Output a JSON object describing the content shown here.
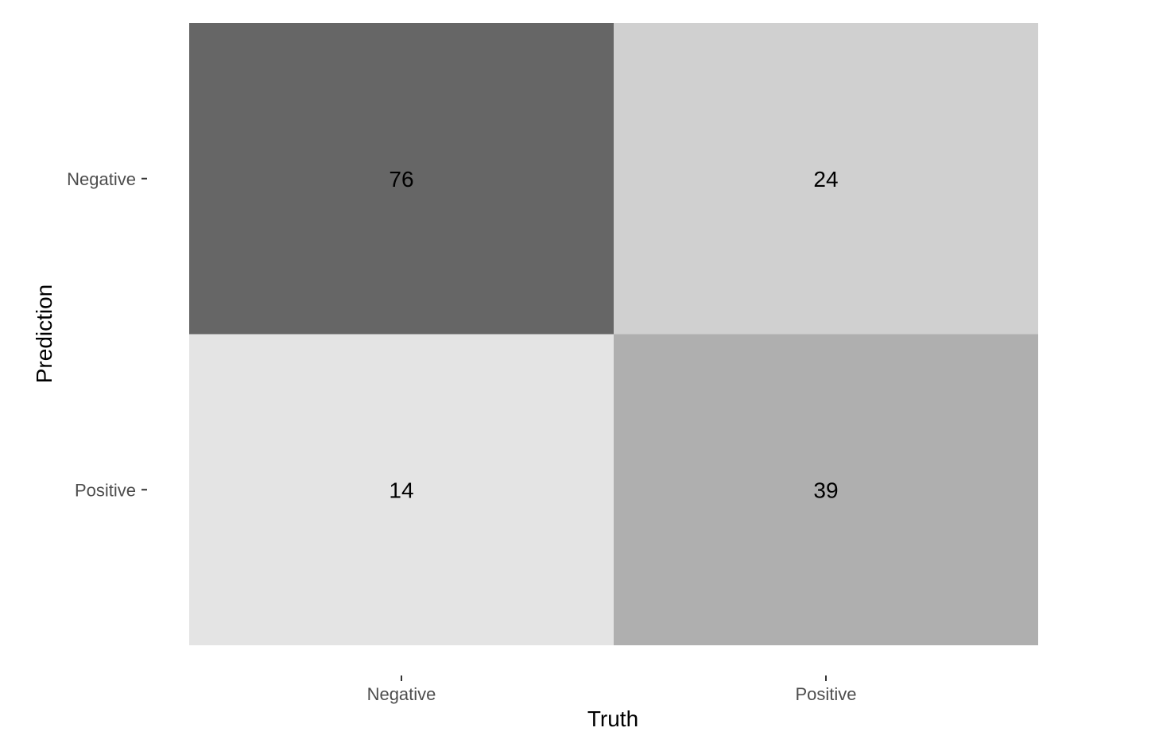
{
  "chart_data": {
    "type": "heatmap",
    "xlabel": "Truth",
    "ylabel": "Prediction",
    "x_categories": [
      "Negative",
      "Positive"
    ],
    "y_categories": [
      "Negative",
      "Positive"
    ],
    "cells": [
      {
        "truth": "Negative",
        "prediction": "Negative",
        "value": 76,
        "color": "#666666"
      },
      {
        "truth": "Positive",
        "prediction": "Negative",
        "value": 24,
        "color": "#d0d0d0"
      },
      {
        "truth": "Negative",
        "prediction": "Positive",
        "value": 14,
        "color": "#e4e4e4"
      },
      {
        "truth": "Positive",
        "prediction": "Positive",
        "value": 39,
        "color": "#afafaf"
      }
    ],
    "grid": false,
    "legend": "none"
  }
}
